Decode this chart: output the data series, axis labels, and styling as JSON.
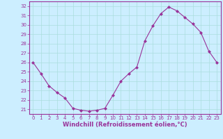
{
  "x": [
    0,
    1,
    2,
    3,
    4,
    5,
    6,
    7,
    8,
    9,
    10,
    11,
    12,
    13,
    14,
    15,
    16,
    17,
    18,
    19,
    20,
    21,
    22,
    23
  ],
  "y": [
    26.0,
    24.8,
    23.5,
    22.8,
    22.2,
    21.1,
    20.9,
    20.8,
    20.9,
    21.1,
    22.5,
    24.0,
    24.8,
    25.5,
    28.3,
    29.9,
    31.2,
    31.9,
    31.5,
    30.8,
    30.1,
    29.2,
    27.2,
    26.0
  ],
  "line_color": "#993399",
  "marker": "D",
  "marker_size": 2,
  "bg_color": "#cceeff",
  "grid_color": "#aadddd",
  "xlabel": "Windchill (Refroidissement éolien,°C)",
  "ylabel": "",
  "xlim": [
    -0.5,
    23.5
  ],
  "ylim": [
    20.5,
    32.5
  ],
  "yticks": [
    21,
    22,
    23,
    24,
    25,
    26,
    27,
    28,
    29,
    30,
    31,
    32
  ],
  "xticks": [
    0,
    1,
    2,
    3,
    4,
    5,
    6,
    7,
    8,
    9,
    10,
    11,
    12,
    13,
    14,
    15,
    16,
    17,
    18,
    19,
    20,
    21,
    22,
    23
  ],
  "tick_color": "#993399",
  "tick_fontsize": 5.0,
  "xlabel_fontsize": 6.0,
  "spine_color": "#993399"
}
